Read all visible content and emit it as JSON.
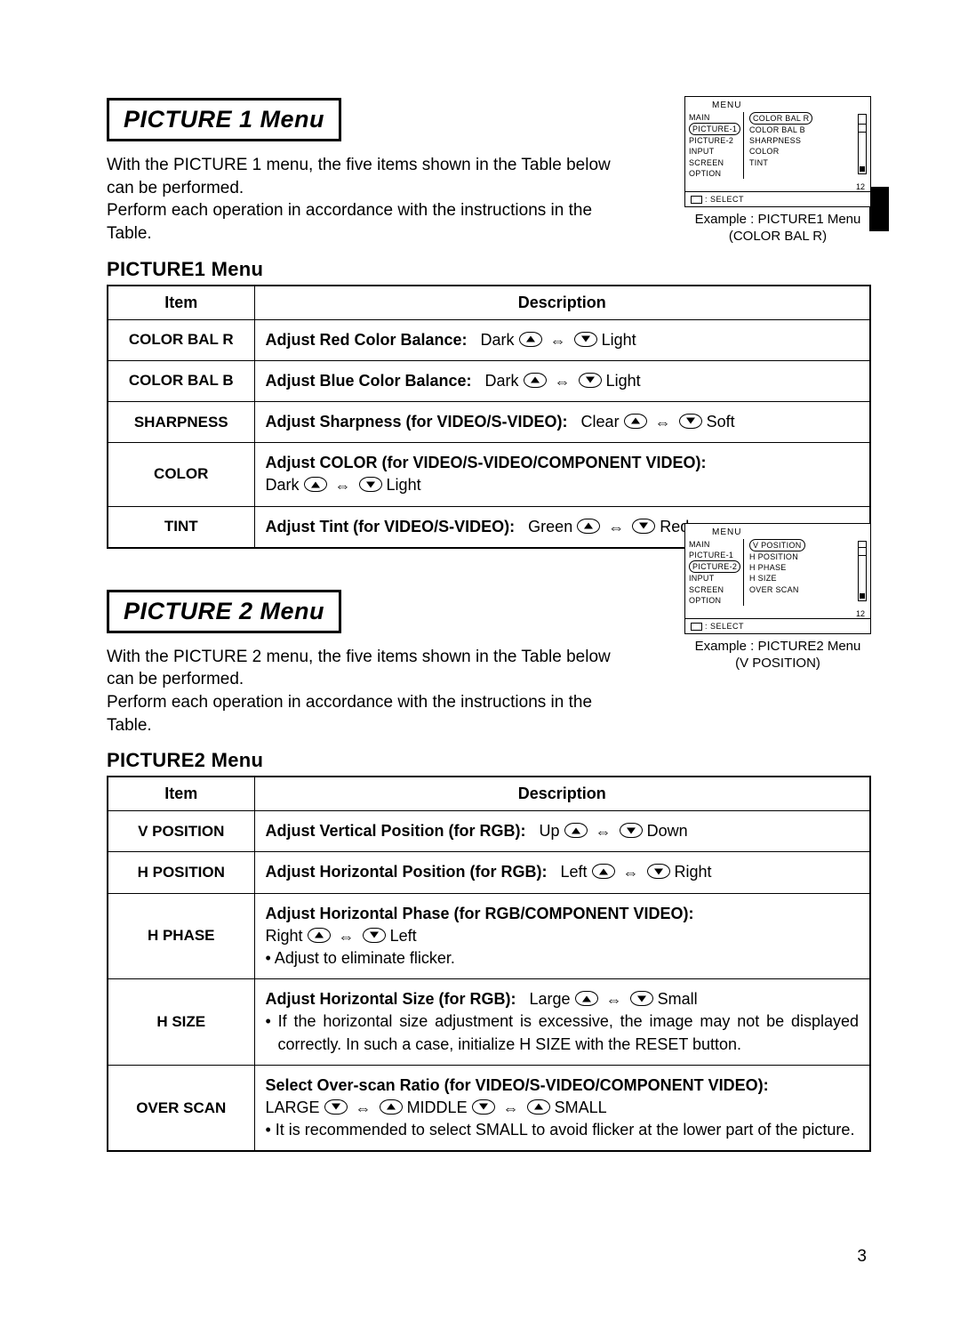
{
  "page_number": "3",
  "section1": {
    "title": "PICTURE 1 Menu",
    "intro1": "With the PICTURE 1 menu, the five items shown in the Table below can be performed.",
    "intro2": "Perform each operation in accordance with the instructions in the Table.",
    "subheading": "PICTURE1 Menu",
    "osd": {
      "caption1": "Example : PICTURE1 Menu",
      "caption2": "(COLOR BAL R)",
      "menu_label": "MENU",
      "col1": [
        "MAIN",
        "PICTURE-1",
        "PICTURE-2",
        "INPUT",
        "SCREEN",
        "OPTION"
      ],
      "col1_selected": 1,
      "col2": [
        "COLOR BAL R",
        "COLOR BAL B",
        "SHARPNESS",
        "COLOR",
        "TINT"
      ],
      "col2_selected": 0,
      "value": "12",
      "select_label": ": SELECT"
    },
    "table": {
      "headers": [
        "Item",
        "Description"
      ],
      "rows": [
        {
          "item": "COLOR BAL R",
          "bold": "Adjust Red Color Balance:",
          "left": "Dark",
          "right": "Light",
          "dir": "ud"
        },
        {
          "item": "COLOR BAL B",
          "bold": "Adjust Blue Color Balance:",
          "left": "Dark",
          "right": "Light",
          "dir": "ud"
        },
        {
          "item": "SHARPNESS",
          "bold": "Adjust Sharpness (for VIDEO/S-VIDEO):",
          "left": "Clear",
          "right": "Soft",
          "dir": "ud"
        },
        {
          "item": "COLOR",
          "bold": "Adjust COLOR (for VIDEO/S-VIDEO/COMPONENT VIDEO):",
          "left": "Dark",
          "right": "Light",
          "dir": "ud",
          "break": true
        },
        {
          "item": "TINT",
          "bold": "Adjust Tint (for VIDEO/S-VIDEO):",
          "left": "Green",
          "right": "Red",
          "dir": "ud"
        }
      ]
    }
  },
  "section2": {
    "title": "PICTURE 2 Menu",
    "intro1": "With the PICTURE 2 menu, the five items shown in the Table below can be performed.",
    "intro2": "Perform each operation in accordance with the instructions in the Table.",
    "subheading": "PICTURE2 Menu",
    "osd": {
      "caption1": "Example : PICTURE2 Menu",
      "caption2": "(V POSITION)",
      "menu_label": "MENU",
      "col1": [
        "MAIN",
        "PICTURE-1",
        "PICTURE-2",
        "INPUT",
        "SCREEN",
        "OPTION"
      ],
      "col1_selected": 2,
      "col2": [
        "V POSITION",
        "H POSITION",
        "H PHASE",
        "H SIZE",
        "OVER SCAN"
      ],
      "col2_selected": 0,
      "value": "12",
      "select_label": ": SELECT"
    },
    "table": {
      "headers": [
        "Item",
        "Description"
      ],
      "rows": [
        {
          "item": "V POSITION",
          "bold": "Adjust Vertical Position (for RGB):",
          "left": "Up",
          "right": "Down",
          "dir": "ud"
        },
        {
          "item": "H POSITION",
          "bold": "Adjust Horizontal Position (for RGB):",
          "left": "Left",
          "right": "Right",
          "dir": "ud"
        },
        {
          "item": "H PHASE",
          "bold": "Adjust Horizontal Phase (for RGB/COMPONENT VIDEO):",
          "left": "Right",
          "right": "Left",
          "dir": "ud",
          "break": true,
          "bullet": "• Adjust to eliminate flicker."
        },
        {
          "item": "H SIZE",
          "bold": "Adjust Horizontal Size (for RGB):",
          "left": "Large",
          "right": "Small",
          "dir": "ud",
          "bullet": "• If the horizontal size adjustment is excessive, the image may not be displayed correctly. In such a case, initialize H SIZE with the RESET button."
        },
        {
          "item": "OVER SCAN",
          "bold": "Select Over-scan Ratio (for VIDEO/S-VIDEO/COMPONENT VIDEO):",
          "overscan": true,
          "l1": "LARGE",
          "l2": "MIDDLE",
          "l3": "SMALL",
          "bullet": "• It is recommended to select SMALL to avoid flicker at the lower part of the picture."
        }
      ]
    }
  }
}
